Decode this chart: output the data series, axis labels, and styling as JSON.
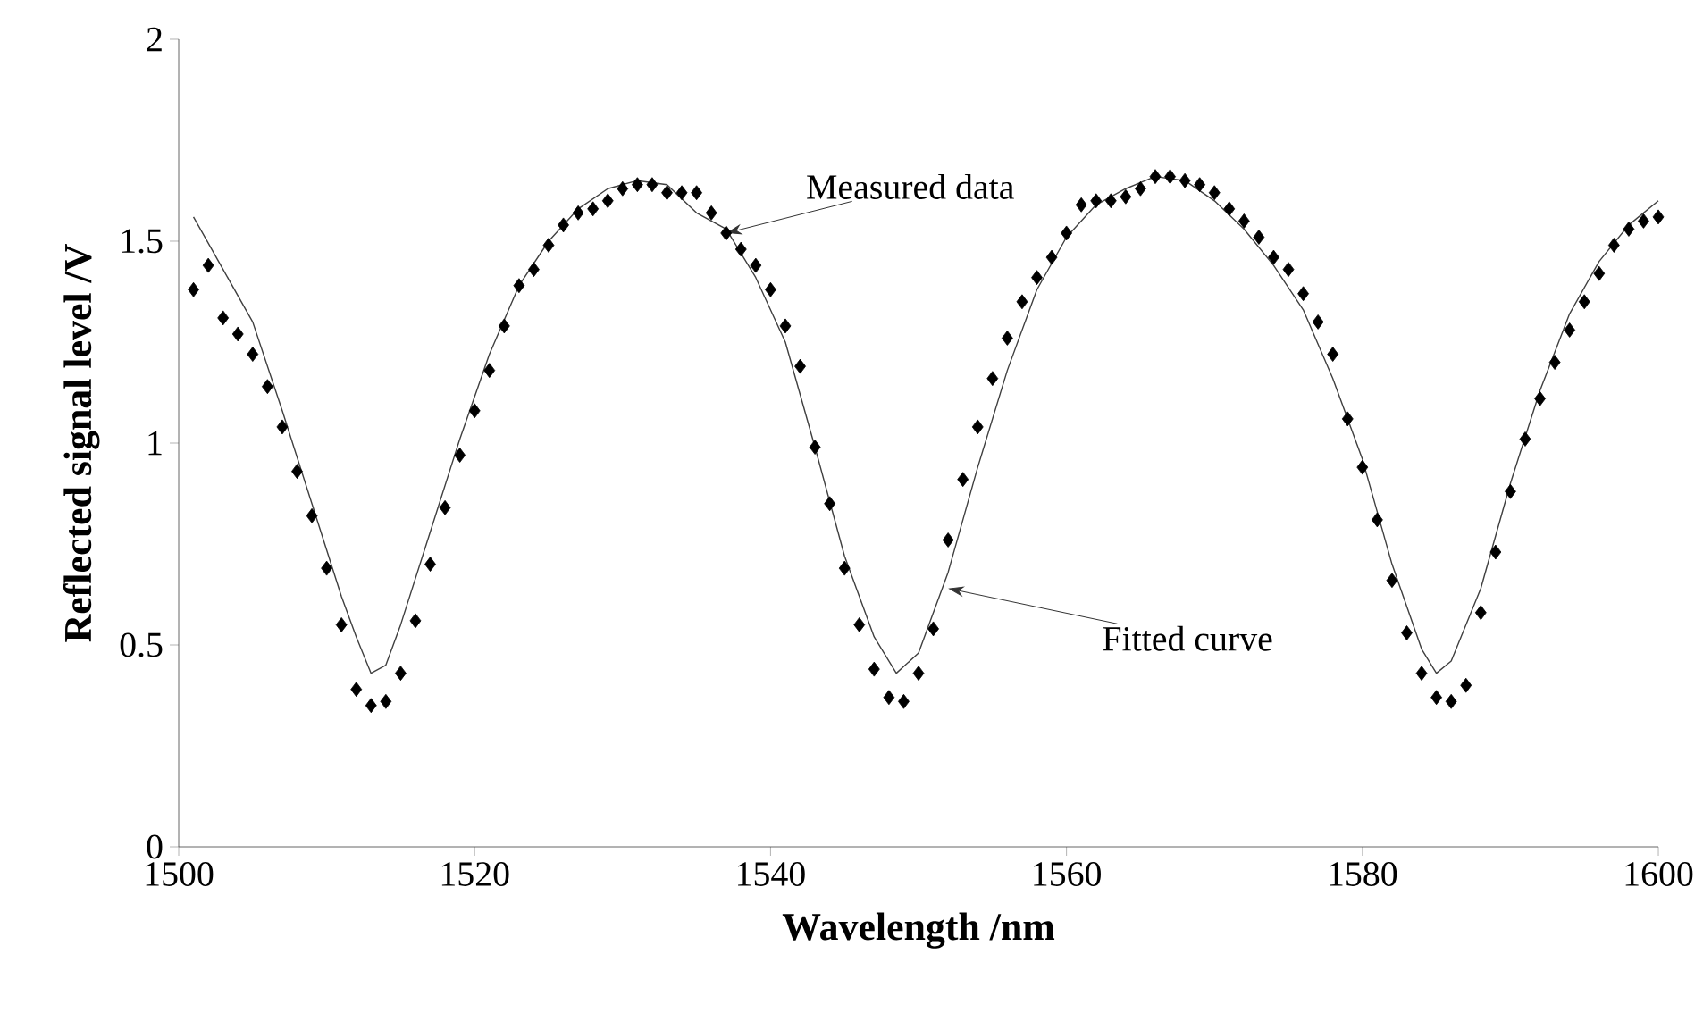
{
  "chart_data": {
    "type": "scatter",
    "xlabel": "Wavelength /nm",
    "ylabel": "Reflected signal level /V",
    "xlim": [
      1500,
      1600
    ],
    "ylim": [
      0,
      2
    ],
    "xticks": [
      1500,
      1520,
      1540,
      1560,
      1580,
      1600
    ],
    "yticks": [
      0,
      0.5,
      1,
      1.5,
      2
    ],
    "grid": false,
    "series": [
      {
        "marker": "diamond",
        "color": "#000000",
        "x": [
          1501,
          1502,
          1503,
          1504,
          1505,
          1506,
          1507,
          1508,
          1509,
          1510,
          1511,
          1512,
          1513,
          1514,
          1515,
          1516,
          1517,
          1518,
          1519,
          1520,
          1521,
          1522,
          1523,
          1524,
          1525,
          1526,
          1527,
          1528,
          1529,
          1530,
          1531,
          1532,
          1533,
          1534,
          1535,
          1536,
          1537,
          1538,
          1539,
          1540,
          1541,
          1542,
          1543,
          1544,
          1545,
          1546,
          1547,
          1548,
          1549,
          1550,
          1551,
          1552,
          1553,
          1554,
          1555,
          1556,
          1557,
          1558,
          1559,
          1560,
          1561,
          1562,
          1563,
          1564,
          1565,
          1566,
          1567,
          1568,
          1569,
          1570,
          1571,
          1572,
          1573,
          1574,
          1575,
          1576,
          1577,
          1578,
          1579,
          1580,
          1581,
          1582,
          1583,
          1584,
          1585,
          1586,
          1587,
          1588,
          1589,
          1590,
          1591,
          1592,
          1593,
          1594,
          1595,
          1596,
          1597,
          1598,
          1599,
          1600
        ],
        "values": [
          1.38,
          1.44,
          1.31,
          1.27,
          1.22,
          1.14,
          1.04,
          0.93,
          0.82,
          0.69,
          0.55,
          0.39,
          0.35,
          0.36,
          0.43,
          0.56,
          0.7,
          0.84,
          0.97,
          1.08,
          1.18,
          1.29,
          1.39,
          1.43,
          1.49,
          1.54,
          1.57,
          1.58,
          1.6,
          1.63,
          1.64,
          1.64,
          1.62,
          1.62,
          1.62,
          1.57,
          1.52,
          1.48,
          1.44,
          1.38,
          1.29,
          1.19,
          0.99,
          0.85,
          0.69,
          0.55,
          0.44,
          0.37,
          0.36,
          0.43,
          0.54,
          0.76,
          0.91,
          1.04,
          1.16,
          1.26,
          1.35,
          1.41,
          1.46,
          1.52,
          1.59,
          1.6,
          1.6,
          1.61,
          1.63,
          1.66,
          1.66,
          1.65,
          1.64,
          1.62,
          1.58,
          1.55,
          1.51,
          1.46,
          1.43,
          1.37,
          1.3,
          1.22,
          1.06,
          0.94,
          0.81,
          0.66,
          0.53,
          0.43,
          0.37,
          0.36,
          0.4,
          0.58,
          0.73,
          0.88,
          1.01,
          1.11,
          1.2,
          1.28,
          1.35,
          1.42,
          1.49,
          1.53,
          1.55,
          1.56
        ]
      },
      {
        "type": "line",
        "marker": "none",
        "line_style": "solid",
        "color": "#404040",
        "x": [
          1501,
          1503,
          1505,
          1507,
          1509,
          1511,
          1512,
          1513,
          1514,
          1515,
          1517,
          1519,
          1521,
          1523,
          1525,
          1527,
          1529,
          1531,
          1533,
          1535,
          1537,
          1539,
          1541,
          1543,
          1545,
          1547,
          1548.5,
          1550,
          1552,
          1554,
          1556,
          1558,
          1560,
          1562,
          1564,
          1566,
          1568,
          1570,
          1572,
          1574,
          1576,
          1578,
          1580,
          1582,
          1584,
          1585,
          1586,
          1588,
          1590,
          1592,
          1594,
          1596,
          1598,
          1600
        ],
        "values": [
          1.56,
          1.43,
          1.3,
          1.08,
          0.85,
          0.62,
          0.52,
          0.43,
          0.45,
          0.55,
          0.78,
          1.01,
          1.22,
          1.39,
          1.5,
          1.58,
          1.63,
          1.65,
          1.64,
          1.57,
          1.53,
          1.41,
          1.25,
          0.99,
          0.72,
          0.52,
          0.43,
          0.48,
          0.68,
          0.94,
          1.18,
          1.38,
          1.51,
          1.59,
          1.63,
          1.66,
          1.65,
          1.6,
          1.53,
          1.44,
          1.33,
          1.16,
          0.96,
          0.7,
          0.49,
          0.43,
          0.46,
          0.64,
          0.9,
          1.13,
          1.32,
          1.45,
          1.54,
          1.6
        ]
      }
    ],
    "annotations": [
      {
        "text": "Measured data",
        "x": 1537,
        "y": 1.52
      },
      {
        "text": "Fitted curve",
        "x": 1552,
        "y": 0.64
      }
    ]
  }
}
